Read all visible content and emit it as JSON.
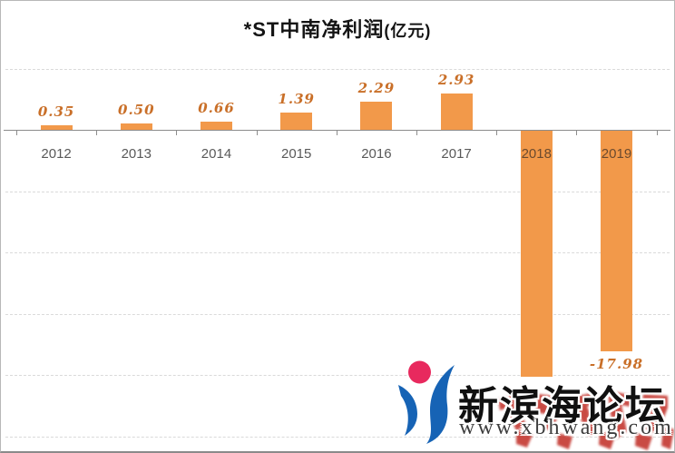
{
  "title": {
    "main": "*ST中南净利润",
    "unit": "(亿元)"
  },
  "chart_data": {
    "type": "bar",
    "title": "*ST中南净利润(亿元)",
    "categories": [
      "2012",
      "2013",
      "2014",
      "2015",
      "2016",
      "2017",
      "2018",
      "2019"
    ],
    "values": [
      0.35,
      0.5,
      0.66,
      1.39,
      2.29,
      2.93,
      -20.1,
      -17.98
    ],
    "data_labels": [
      "0.35",
      "0.50",
      "0.66",
      "1.39",
      "2.29",
      "2.93",
      "",
      "-17.98"
    ],
    "data_label_note": "2018 data label obscured by watermark; value estimated from -20 gridline",
    "xlabel": "",
    "ylabel": "",
    "axis_range": [
      -25,
      5
    ],
    "gridline_values": [
      5,
      -5,
      -10,
      -15,
      -20,
      -25
    ],
    "grid": "dashed",
    "legend": "none",
    "colors": {
      "bar": "#F2994A",
      "data_label": "#C96F28",
      "year_label": "#595959",
      "year_label_on_bar": "#6B4A2E",
      "axis": "#8C8C8C",
      "grid": "#DADADA",
      "title": "#141414"
    }
  },
  "watermark": {
    "site_name": "新滨海论坛",
    "site_url": "www.xbhwang.com",
    "colors": {
      "logo_circle": "#E8295E",
      "logo_swoosh": "#1663B5",
      "stamp": "#C23329",
      "name_text": "#101010",
      "url_text": "#3D3D3D"
    }
  }
}
